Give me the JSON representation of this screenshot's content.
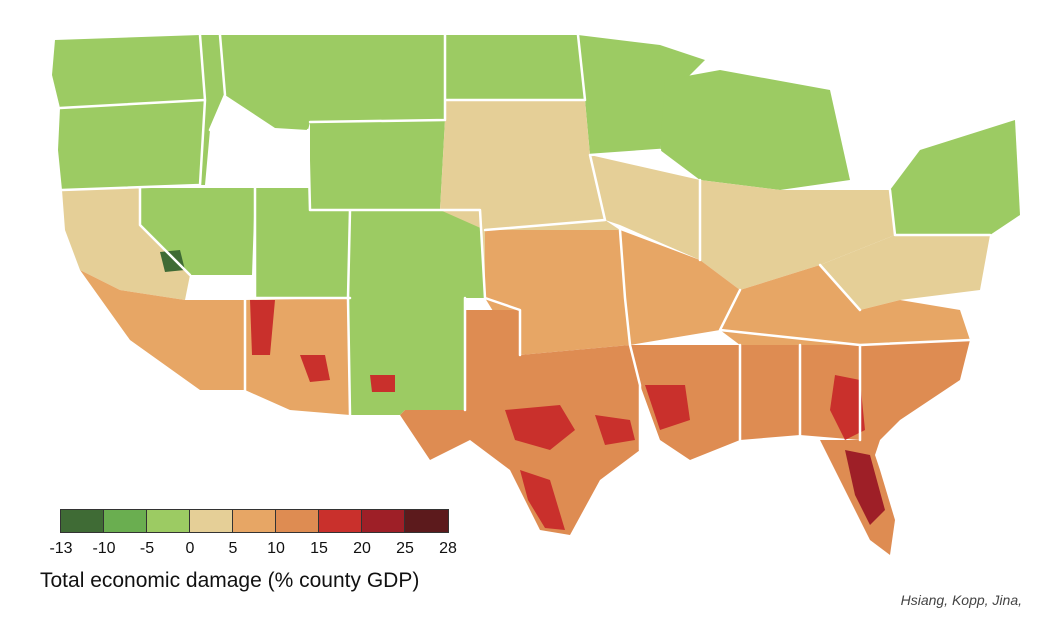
{
  "map": {
    "colors": {
      "dark_green": "#3f6b35",
      "green": "#6aae50",
      "light_green": "#9ccb63",
      "tan": "#e5cf97",
      "light_orange": "#e7a665",
      "orange": "#de8c52",
      "red": "#c9302c",
      "dark_red": "#9e1f27",
      "maroon": "#5c1a1c",
      "state_border": "#ffffff"
    }
  },
  "legend": {
    "swatch_colors": [
      "#3f6b35",
      "#6aae50",
      "#9ccb63",
      "#e5cf97",
      "#e7a665",
      "#de8c52",
      "#c9302c",
      "#9e1f27",
      "#5c1a1c"
    ],
    "ticks": [
      "-13",
      "-10",
      "-5",
      "0",
      "5",
      "10",
      "15",
      "20",
      "25",
      "28"
    ],
    "title": "Total economic damage (% county GDP)"
  },
  "credit": "Hsiang, Kopp, Jina,"
}
